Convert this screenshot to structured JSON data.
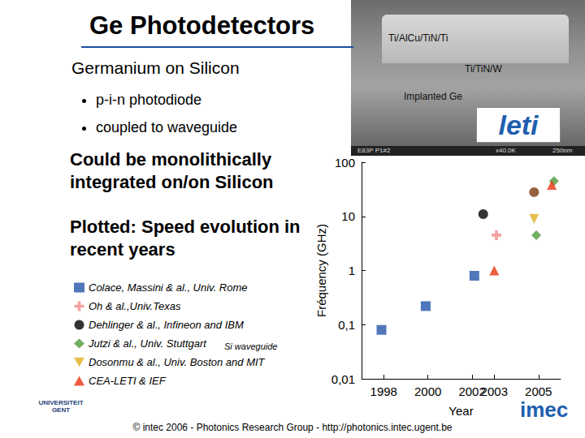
{
  "slide": {
    "title": "Ge Photodetectors",
    "subtitle": "Germanium on Silicon",
    "bullets": [
      "p-i-n photodiode",
      "coupled to waveguide"
    ],
    "statements": [
      "Could be monolithically integrated on/on Silicon",
      "Plotted: Speed evolution in recent years"
    ],
    "legend_note": "Si waveguide",
    "image_labels": [
      "Ti/AlCu/TiN/Ti",
      "Ti/TiN/W",
      "Implanted Ge"
    ],
    "image_info": [
      "E83P P1#2",
      "x40.0K",
      "250nm"
    ],
    "logos": [
      "leti",
      "UNIVERSITEIT GENT",
      "imec"
    ],
    "footer": "© intec 2006 - Photonics Research Group - http://photonics.intec.ugent.be"
  },
  "chart_data": {
    "type": "scatter",
    "x_label": "Year",
    "y_label": "Fréquency (GHz)",
    "log": "y",
    "grid": false,
    "xlim": [
      1997,
      2006
    ],
    "xticks": [
      1998,
      2000,
      2002,
      2003,
      2005
    ],
    "ylim": [
      0.01,
      100
    ],
    "yticks": [
      {
        "value": 0.01,
        "label": "0,01"
      },
      {
        "value": 0.1,
        "label": "0,1"
      },
      1,
      10,
      100
    ],
    "series": [
      {
        "name": "Colace, Massini & al., Univ. Rome",
        "color": "#2455a8",
        "marker": "square",
        "x": [
          1997.9,
          1999.9,
          2002.1
        ],
        "values": [
          0.08,
          0.22,
          0.8
        ]
      },
      {
        "name": "Oh & al.,Univ.Texas",
        "color": "#f28a8a",
        "marker": "plus",
        "x": [
          2003.1
        ],
        "values": [
          4.5
        ]
      },
      {
        "name": "Dehlinger & al., Infineon and IBM",
        "color": "#000000",
        "marker": "circle",
        "x": [
          2002.5
        ],
        "values": [
          11
        ]
      },
      {
        "name": "Jutzi & al., Univ. Stuttgart",
        "color": "#4f9a3c",
        "marker": "diamond",
        "x": [
          2004.9,
          2005.7
        ],
        "values": [
          4.5,
          45
        ]
      },
      {
        "name": "Dosonmu & al., Univ. Boston and MIT",
        "color": "#e0b020",
        "marker": "triangle_down",
        "x": [
          2004.8
        ],
        "values": [
          9
        ]
      },
      {
        "name": "CEA-LETI & IEF",
        "color": "#e8340f",
        "marker": "triangle",
        "x": [
          2003.0,
          2005.6
        ],
        "values": [
          1.0,
          38
        ]
      },
      {
        "color": "#7a3a12",
        "marker": "circle",
        "x": [
          2004.8
        ],
        "values": [
          28
        ]
      }
    ]
  }
}
